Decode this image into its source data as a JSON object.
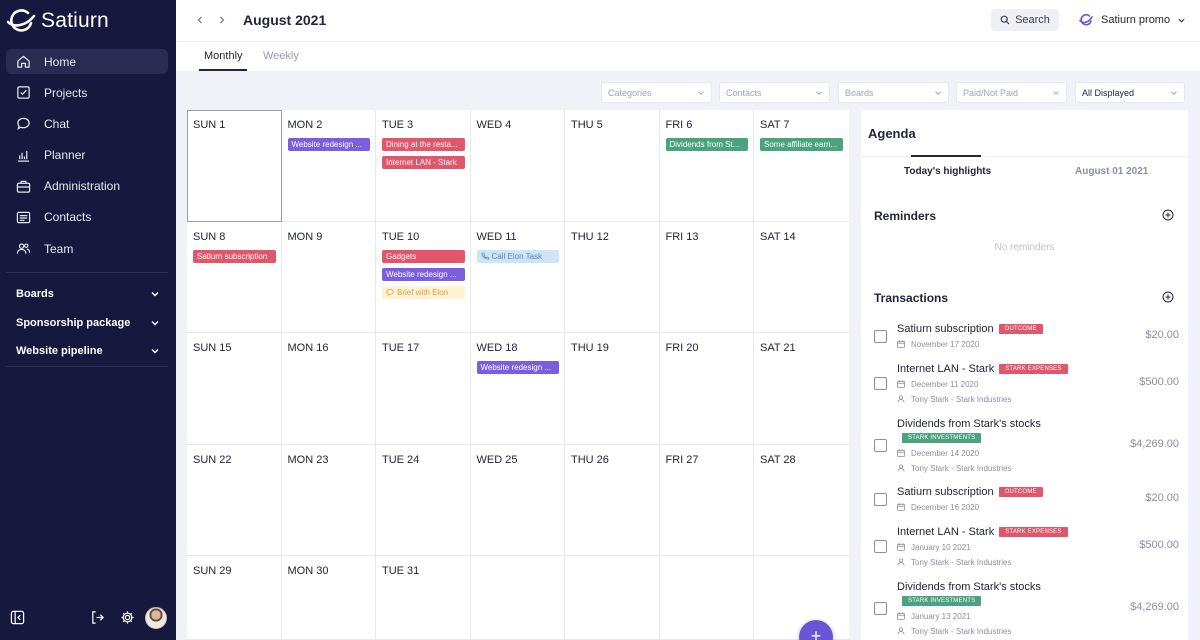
{
  "app": {
    "name": "Satiurn"
  },
  "nav": [
    {
      "label": "Home",
      "icon": "home-icon",
      "active": true
    },
    {
      "label": "Projects",
      "icon": "checkbox-icon"
    },
    {
      "label": "Chat",
      "icon": "chat-icon"
    },
    {
      "label": "Planner",
      "icon": "chart-icon"
    },
    {
      "label": "Administration",
      "icon": "briefcase-icon"
    },
    {
      "label": "Contacts",
      "icon": "contacts-icon"
    },
    {
      "label": "Team",
      "icon": "team-icon"
    }
  ],
  "sections": [
    "Boards",
    "Sponsorship package",
    "Website pipeline"
  ],
  "topbar": {
    "title": "August 2021",
    "search_label": "Search",
    "workspace": "Satiurn promo"
  },
  "tabs": [
    {
      "label": "Monthly",
      "active": true
    },
    {
      "label": "Weekly"
    }
  ],
  "filters": [
    "Categories",
    "Contacts",
    "Boards",
    "Paid/Not Paid",
    "All Displayed"
  ],
  "colors": {
    "red": "#e0566a",
    "purple": "#7b5ee0",
    "green": "#4aa37e",
    "light_blue": "#cfe3f5",
    "light_yellow": "#fdf1d6",
    "accent": "#6a55d4"
  },
  "calendar": {
    "days": [
      {
        "label": "SUN 1",
        "selected": true,
        "events": []
      },
      {
        "label": "MON 2",
        "events": [
          {
            "text": "Website redesign ...",
            "color": "#7b5ee0"
          }
        ]
      },
      {
        "label": "TUE 3",
        "events": [
          {
            "text": "Dining at the resta...",
            "color": "#e0566a"
          },
          {
            "text": "Internet LAN - Stark",
            "color": "#e0566a"
          }
        ]
      },
      {
        "label": "WED 4",
        "events": []
      },
      {
        "label": "THU 5",
        "events": []
      },
      {
        "label": "FRI 6",
        "events": [
          {
            "text": "Dividends from St...",
            "color": "#4aa37e"
          }
        ]
      },
      {
        "label": "SAT 7",
        "events": [
          {
            "text": "Some affiliate earn...",
            "color": "#4aa37e"
          }
        ]
      },
      {
        "label": "SUN 8",
        "events": [
          {
            "text": "Satiurn subscription",
            "color": "#e0566a"
          }
        ]
      },
      {
        "label": "MON 9",
        "events": []
      },
      {
        "label": "TUE 10",
        "events": [
          {
            "text": "Gadgets",
            "color": "#e0566a"
          },
          {
            "text": "Website redesign ...",
            "color": "#7b5ee0"
          },
          {
            "text": "Brief with Elon",
            "color": "#fdf1d6",
            "text_color": "#d9a53f",
            "icon": "chat-icon"
          }
        ]
      },
      {
        "label": "WED 11",
        "events": [
          {
            "text": "Call Elon Task",
            "color": "#cfe3f5",
            "text_color": "#4a8ac9",
            "icon": "phone-icon"
          }
        ]
      },
      {
        "label": "THU 12",
        "events": []
      },
      {
        "label": "FRI 13",
        "events": []
      },
      {
        "label": "SAT 14",
        "events": []
      },
      {
        "label": "SUN 15",
        "events": []
      },
      {
        "label": "MON 16",
        "events": []
      },
      {
        "label": "TUE 17",
        "events": []
      },
      {
        "label": "WED 18",
        "events": [
          {
            "text": "Website redesign ...",
            "color": "#7b5ee0"
          }
        ]
      },
      {
        "label": "THU 19",
        "events": []
      },
      {
        "label": "FRI 20",
        "events": []
      },
      {
        "label": "SAT 21",
        "events": []
      },
      {
        "label": "SUN 22",
        "events": []
      },
      {
        "label": "MON 23",
        "events": []
      },
      {
        "label": "TUE 24",
        "events": []
      },
      {
        "label": "WED 25",
        "events": []
      },
      {
        "label": "THU 26",
        "events": []
      },
      {
        "label": "FRI 27",
        "events": []
      },
      {
        "label": "SAT 28",
        "events": []
      },
      {
        "label": "SUN 29",
        "events": []
      },
      {
        "label": "MON 30",
        "events": []
      },
      {
        "label": "TUE 31",
        "events": []
      },
      {
        "label": "",
        "events": []
      },
      {
        "label": "",
        "events": []
      },
      {
        "label": "",
        "events": []
      },
      {
        "label": "",
        "events": []
      }
    ]
  },
  "agenda": {
    "title": "Agenda",
    "tabs": [
      "Today's highlights",
      "August 01 2021"
    ],
    "reminders_title": "Reminders",
    "no_reminders": "No reminders",
    "transactions_title": "Transactions",
    "transactions": [
      {
        "title": "Satiurn subscription",
        "badge": "OUTCOME",
        "badge_color": "#e0566a",
        "date": "November 17 2020",
        "contact": "",
        "amount": "$20.00"
      },
      {
        "title": "Internet LAN - Stark",
        "badge": "STARK EXPENSES",
        "badge_color": "#e0566a",
        "date": "December 11 2020",
        "contact": "Tony Stark - Stark Industries",
        "amount": "$500.00"
      },
      {
        "title": "Dividends from Stark's stocks",
        "badge": "STARK INVESTMENTS",
        "badge_color": "#4aa37e",
        "date": "December 14 2020",
        "contact": "Tony Stark - Stark Industries",
        "amount": "$4,269.00"
      },
      {
        "title": "Satiurn subscription",
        "badge": "OUTCOME",
        "badge_color": "#e0566a",
        "date": "December 16 2020",
        "contact": "",
        "amount": "$20.00"
      },
      {
        "title": "Internet LAN - Stark",
        "badge": "STARK EXPENSES",
        "badge_color": "#e0566a",
        "date": "January 10 2021",
        "contact": "Tony Stark - Stark Industries",
        "amount": "$500.00"
      },
      {
        "title": "Dividends from Stark's stocks",
        "badge": "STARK INVESTMENTS",
        "badge_color": "#4aa37e",
        "date": "January 13 2021",
        "contact": "Tony Stark - Stark Industries",
        "amount": "$4,269.00"
      }
    ]
  }
}
